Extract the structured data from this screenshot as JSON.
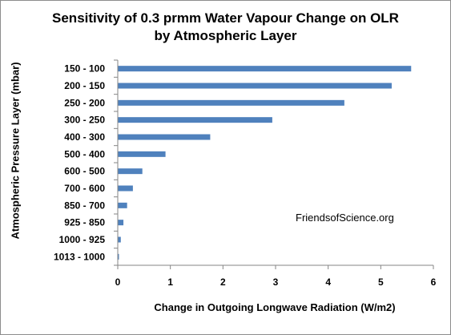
{
  "chart_data": {
    "type": "bar",
    "orientation": "horizontal",
    "title_line1": "Sensitivity of 0.3 prmm Water Vapour Change on OLR",
    "title_line2": "by Atmospheric Layer",
    "xlabel": "Change in Outgoing Longwave Radiation (W/m2)",
    "ylabel": "Atmospheric Pressure Layer (mbar)",
    "xlim": [
      0,
      6
    ],
    "x_ticks": [
      "0",
      "1",
      "2",
      "3",
      "4",
      "5",
      "6"
    ],
    "categories": [
      "150 - 100",
      "200 - 150",
      "250 - 200",
      "300 - 250",
      "400 - 300",
      "500 - 400",
      "600 - 500",
      "700 - 600",
      "850 - 700",
      "925 - 850",
      "1000 - 925",
      "1013 - 1000"
    ],
    "values": [
      5.57,
      5.2,
      4.3,
      2.93,
      1.75,
      0.9,
      0.46,
      0.28,
      0.17,
      0.1,
      0.05,
      0.01
    ],
    "bar_color": "#4f81bd",
    "grid": false,
    "legend": "none",
    "annotation": "FriendsofScience.org"
  }
}
